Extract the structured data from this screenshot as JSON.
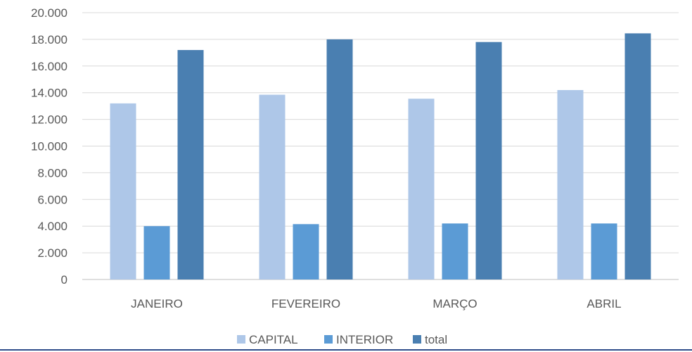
{
  "chart_data": {
    "type": "bar",
    "categories": [
      "JANEIRO",
      "FEVEREIRO",
      "MARÇO",
      "ABRIL"
    ],
    "series": [
      {
        "name": "CAPITAL",
        "color": "#aec7e8",
        "values": [
          13200,
          13850,
          13550,
          14200
        ]
      },
      {
        "name": "INTERIOR",
        "color": "#5b9bd5",
        "values": [
          4000,
          4150,
          4200,
          4200
        ]
      },
      {
        "name": "total",
        "color": "#4a7fb1",
        "values": [
          17200,
          18000,
          17800,
          18450
        ]
      }
    ],
    "yticks": [
      "0",
      "2.000",
      "4.000",
      "6.000",
      "8.000",
      "10.000",
      "12.000",
      "14.000",
      "16.000",
      "18.000",
      "20.000"
    ],
    "ylim": [
      0,
      20000
    ],
    "grid": true,
    "legend_position": "bottom",
    "title": "",
    "xlabel": "",
    "ylabel": ""
  }
}
